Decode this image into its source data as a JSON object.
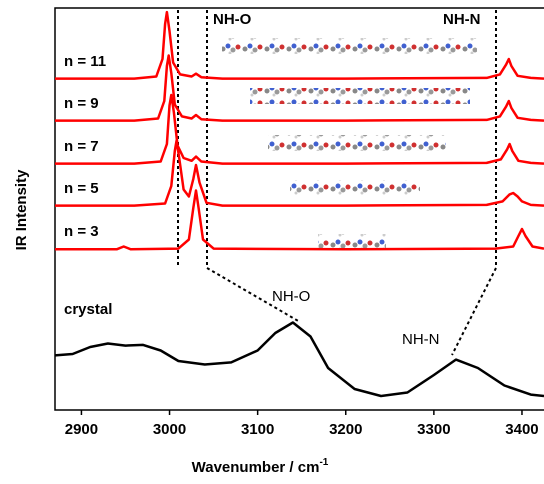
{
  "chart_data": {
    "type": "line",
    "x_label": "Wavenumber / cm",
    "x_label_sup": "-1",
    "y_label": "IR Intensity",
    "xlim": [
      2870,
      3425
    ],
    "xticks": [
      2900,
      3000,
      3100,
      3200,
      3300,
      3400
    ],
    "annotations": [
      "NH-O",
      "NH-N",
      "NH-O",
      "NH-N"
    ],
    "series": [
      {
        "name": "n = 11",
        "color": "#ff0000",
        "x": [
          2870,
          2960,
          2985,
          2992,
          2995,
          2997,
          3000,
          3004,
          3012,
          3025,
          3030,
          3036,
          3060,
          3200,
          3360,
          3375,
          3382,
          3385,
          3388,
          3395,
          3410,
          3425
        ],
        "values": [
          0.02,
          0.02,
          0.05,
          0.3,
          0.8,
          0.97,
          0.7,
          0.25,
          0.08,
          0.05,
          0.09,
          0.04,
          0.02,
          0.02,
          0.03,
          0.08,
          0.22,
          0.3,
          0.2,
          0.06,
          0.03,
          0.02
        ]
      },
      {
        "name": "n = 9",
        "color": "#ff0000",
        "x": [
          2870,
          2960,
          2987,
          2994,
          2997,
          2999,
          3002,
          3006,
          3014,
          3025,
          3030,
          3036,
          3060,
          3200,
          3360,
          3375,
          3382,
          3385,
          3388,
          3395,
          3410,
          3425
        ],
        "values": [
          0.02,
          0.02,
          0.05,
          0.3,
          0.8,
          0.95,
          0.7,
          0.25,
          0.08,
          0.05,
          0.1,
          0.04,
          0.02,
          0.02,
          0.03,
          0.08,
          0.22,
          0.3,
          0.2,
          0.06,
          0.03,
          0.02
        ]
      },
      {
        "name": "n = 7",
        "color": "#ff0000",
        "x": [
          2870,
          2960,
          2990,
          2997,
          3000,
          3002,
          3005,
          3009,
          3016,
          3025,
          3030,
          3036,
          3060,
          3200,
          3360,
          3376,
          3383,
          3386,
          3389,
          3396,
          3410,
          3425
        ],
        "values": [
          0.02,
          0.02,
          0.05,
          0.3,
          0.85,
          1.0,
          0.75,
          0.28,
          0.1,
          0.06,
          0.12,
          0.05,
          0.02,
          0.02,
          0.03,
          0.08,
          0.22,
          0.3,
          0.2,
          0.06,
          0.03,
          0.02
        ]
      },
      {
        "name": "n = 5",
        "color": "#ff0000",
        "x": [
          2870,
          2960,
          2995,
          3002,
          3006,
          3008,
          3011,
          3016,
          3022,
          3027,
          3030,
          3034,
          3042,
          3060,
          3200,
          3360,
          3378,
          3386,
          3390,
          3395,
          3400,
          3410,
          3425
        ],
        "values": [
          0.02,
          0.02,
          0.05,
          0.3,
          0.8,
          0.95,
          0.7,
          0.25,
          0.15,
          0.4,
          0.6,
          0.35,
          0.06,
          0.02,
          0.02,
          0.03,
          0.08,
          0.18,
          0.2,
          0.15,
          0.08,
          0.03,
          0.02
        ]
      },
      {
        "name": "n = 3",
        "color": "#ff0000",
        "x": [
          2870,
          2940,
          2948,
          2956,
          3010,
          3022,
          3027,
          3030,
          3033,
          3038,
          3050,
          3200,
          3370,
          3390,
          3396,
          3400,
          3404,
          3412,
          3425
        ],
        "values": [
          0.01,
          0.01,
          0.05,
          0.01,
          0.02,
          0.15,
          0.6,
          0.85,
          0.6,
          0.15,
          0.02,
          0.01,
          0.02,
          0.05,
          0.2,
          0.3,
          0.2,
          0.05,
          0.02
        ]
      },
      {
        "name": "crystal",
        "color": "#000000",
        "x": [
          2870,
          2890,
          2910,
          2930,
          2950,
          2970,
          2990,
          3010,
          3040,
          3070,
          3100,
          3120,
          3140,
          3160,
          3180,
          3210,
          3240,
          3270,
          3300,
          3325,
          3350,
          3380,
          3410,
          3425
        ],
        "values": [
          0.78,
          0.8,
          0.9,
          0.95,
          0.92,
          0.93,
          0.85,
          0.7,
          0.65,
          0.68,
          0.85,
          1.1,
          1.25,
          1.05,
          0.6,
          0.3,
          0.2,
          0.25,
          0.5,
          0.72,
          0.6,
          0.35,
          0.22,
          0.2
        ]
      }
    ]
  }
}
